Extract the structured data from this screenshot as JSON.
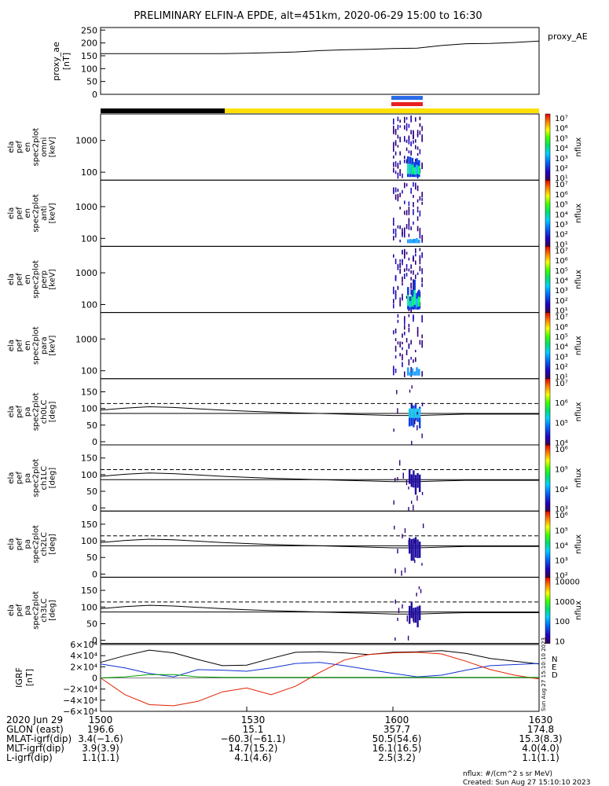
{
  "title": "PRELIMINARY ELFIN-A EPDE, alt=451km, 2020-06-29 15:00 to 16:30",
  "proxy_ae": {
    "ylabel_lines": [
      "proxy_ae",
      "[nT]"
    ],
    "yticks": [
      "250",
      "200",
      "150",
      "100",
      "50",
      "0"
    ],
    "ytick_values": [
      250,
      200,
      150,
      100,
      50,
      0
    ],
    "ylim": [
      0,
      260
    ],
    "legend": "proxy_AE",
    "series": {
      "x_minutes": [
        0,
        5,
        10,
        15,
        20,
        25,
        30,
        35,
        40,
        45,
        50,
        55,
        60,
        65,
        70,
        75,
        80,
        85,
        90
      ],
      "values": [
        158,
        158,
        158,
        158,
        158,
        158,
        160,
        162,
        165,
        170,
        173,
        175,
        178,
        180,
        190,
        197,
        198,
        202,
        207
      ]
    }
  },
  "status_bars": {
    "science_zone_colors": [
      "#2b6be8",
      "#e82020"
    ],
    "bar_black": "#000000",
    "bar_yellow": "#ffe100"
  },
  "spectrogram_panels": [
    {
      "ylabel_lines": [
        "ela",
        "pef",
        "en",
        "spec2plot",
        "omni",
        "[keV]"
      ],
      "yticks": [
        "1000",
        "100"
      ]
    },
    {
      "ylabel_lines": [
        "ela",
        "pef",
        "en",
        "spec2plot",
        "anti",
        "[keV]"
      ],
      "yticks": [
        "1000",
        "100"
      ]
    },
    {
      "ylabel_lines": [
        "ela",
        "pef",
        "en",
        "spec2plot",
        "perp",
        "[keV]"
      ],
      "yticks": [
        "1000",
        "100"
      ]
    },
    {
      "ylabel_lines": [
        "ela",
        "pef",
        "en",
        "spec2plot",
        "para",
        "[keV]"
      ],
      "yticks": [
        "1000",
        "100"
      ]
    }
  ],
  "pitch_panels": [
    {
      "ylabel_lines": [
        "ela",
        "pef",
        "pa",
        "spec2plot",
        "ch0LC",
        "[deg]"
      ],
      "yticks": [
        "150",
        "100",
        "50",
        "0"
      ]
    },
    {
      "ylabel_lines": [
        "ela",
        "pef",
        "pa",
        "spec2plot",
        "ch1LC",
        "[deg]"
      ],
      "yticks": [
        "150",
        "100",
        "50",
        "0"
      ]
    },
    {
      "ylabel_lines": [
        "ela",
        "pef",
        "pa",
        "spec2plot",
        "ch2LC",
        "[deg]"
      ],
      "yticks": [
        "150",
        "100",
        "50",
        "0"
      ]
    },
    {
      "ylabel_lines": [
        "ela",
        "pef",
        "pa",
        "spec2plot",
        "ch3LC",
        "[deg]"
      ],
      "yticks": [
        "150",
        "100",
        "50",
        "0"
      ]
    }
  ],
  "colorbars": [
    {
      "labels": [
        "10⁷",
        "10⁶",
        "10⁵",
        "10⁴",
        "10³",
        "10²",
        "10¹"
      ],
      "unit": "nflux"
    },
    {
      "labels": [
        "10⁷",
        "10⁶",
        "10⁵",
        "10⁴",
        "10³",
        "10²",
        "10¹"
      ],
      "unit": "nflux"
    },
    {
      "labels": [
        "10⁷",
        "10⁶",
        "10⁵",
        "10⁴",
        "10³",
        "10²",
        "10¹"
      ],
      "unit": "nflux"
    },
    {
      "labels": [
        "10⁷",
        "10⁶",
        "10⁵",
        "10⁴",
        "10³",
        "10²",
        "10¹"
      ],
      "unit": "nflux"
    },
    {
      "labels": [
        "10⁷",
        "10⁶",
        "10⁵",
        "10⁴"
      ],
      "unit": "nflux"
    },
    {
      "labels": [
        "10⁶",
        "10⁵",
        "10⁴",
        "10³"
      ],
      "unit": "nflux"
    },
    {
      "labels": [
        "10⁶",
        "10⁵",
        "10⁴",
        "10³",
        "10²"
      ],
      "unit": "nflux"
    },
    {
      "labels": [
        "10000",
        "1000",
        "100",
        "10"
      ],
      "unit": "nflux"
    }
  ],
  "igrf_panel": {
    "ylabel_lines": [
      "IGRF",
      "[nT]"
    ],
    "yticks": [
      "6×10⁴",
      "4×10⁴",
      "2×10⁴",
      "0",
      "−2×10⁴",
      "−4×10⁴",
      "−6×10⁴"
    ],
    "ytick_values": [
      60000,
      40000,
      20000,
      0,
      -20000,
      -40000,
      -60000
    ],
    "legend": [
      {
        "label": "N",
        "color": "#1030d0"
      },
      {
        "label": "E",
        "color": "#e02000"
      },
      {
        "label": "D",
        "color": "#00a000"
      }
    ],
    "side_text": "Sun Aug 27 15:10:10 2023"
  },
  "chart_data": {
    "type": "line",
    "title": "PRELIMINARY ELFIN-A EPDE, alt=451km, 2020-06-29 15:00 to 16:30",
    "x_axis": "UT time, minutes after 15:00 (2020-06-29)",
    "xlim": [
      0,
      90
    ],
    "series": [
      {
        "name": "proxy_AE",
        "x": [
          0,
          5,
          10,
          15,
          20,
          25,
          30,
          35,
          40,
          45,
          50,
          55,
          60,
          65,
          70,
          75,
          80,
          85,
          90
        ],
        "values": [
          158,
          158,
          158,
          158,
          158,
          158,
          160,
          162,
          165,
          170,
          173,
          175,
          178,
          180,
          190,
          197,
          198,
          202,
          207
        ],
        "color": "#000000"
      },
      {
        "x": [
          0,
          5,
          10,
          15,
          20,
          25,
          30,
          35,
          40,
          45,
          50,
          55,
          60,
          65,
          70,
          75,
          80,
          85,
          90
        ],
        "values": [
          28000,
          40000,
          50000,
          45000,
          33000,
          22000,
          23000,
          35000,
          46000,
          47000,
          45000,
          42000,
          46000,
          47000,
          49000,
          44000,
          35000,
          30000,
          25000
        ],
        "color": "#000000"
      },
      {
        "name": "N",
        "x": [
          0,
          5,
          10,
          15,
          20,
          25,
          30,
          35,
          40,
          45,
          50,
          55,
          60,
          65,
          70,
          75,
          80,
          85,
          90
        ],
        "values": [
          25000,
          18000,
          8000,
          2000,
          15000,
          14000,
          12000,
          18000,
          26000,
          28000,
          22000,
          15000,
          8000,
          2000,
          5000,
          14000,
          22000,
          24000,
          26000
        ],
        "color": "#1030d0"
      },
      {
        "name": "E",
        "x": [
          0,
          5,
          10,
          15,
          20,
          25,
          30,
          35,
          40,
          45,
          50,
          55,
          60,
          65,
          70,
          75,
          80,
          85,
          90
        ],
        "values": [
          0,
          -30000,
          -48000,
          -50000,
          -42000,
          -25000,
          -18000,
          -30000,
          -15000,
          10000,
          32000,
          42000,
          45000,
          46000,
          43000,
          30000,
          15000,
          5000,
          -2000
        ],
        "color": "#e02000"
      },
      {
        "name": "D",
        "x": [
          0,
          5,
          10,
          15,
          20,
          25,
          30,
          35,
          40,
          45,
          50,
          55,
          60,
          65,
          70,
          75,
          80,
          85,
          90
        ],
        "values": [
          0,
          2000,
          6000,
          6000,
          2000,
          1000,
          1000,
          1000,
          1000,
          1000,
          1000,
          1000,
          1000,
          1000,
          1000,
          1000,
          1000,
          1000,
          1000
        ],
        "color": "#00a000"
      }
    ],
    "pitch_angle_loss_cone_deg": [
      115,
      105,
      95,
      85,
      75
    ],
    "time_ticks": [
      "1500",
      "1530",
      "1600",
      "1630"
    ],
    "ephemeris": {
      "date_label": "2020 Jun 29",
      "rows": [
        {
          "label": "GLON (east)",
          "values": [
            "196.6",
            "15.1",
            "357.7",
            "174.8"
          ]
        },
        {
          "label": "MLAT-igrf(dip)",
          "values": [
            "3.4(−1.6)",
            "−60.3(−61.1)",
            "50.5(54.6)",
            "15.3(8.3)"
          ]
        },
        {
          "label": "MLT-igrf(dip)",
          "values": [
            "3.9(3.9)",
            "14.7(15.2)",
            "16.1(16.5)",
            "4.0(4.0)"
          ]
        },
        {
          "label": "L-igrf(dip)",
          "values": [
            "1.1(1.1)",
            "4.1(4.6)",
            "2.5(3.2)",
            "1.1(1.1)"
          ]
        }
      ]
    }
  },
  "footer": {
    "units": "nflux: #/(cm^2 s sr MeV)",
    "created": "Created: Sun Aug 27 15:10:10 2023"
  }
}
